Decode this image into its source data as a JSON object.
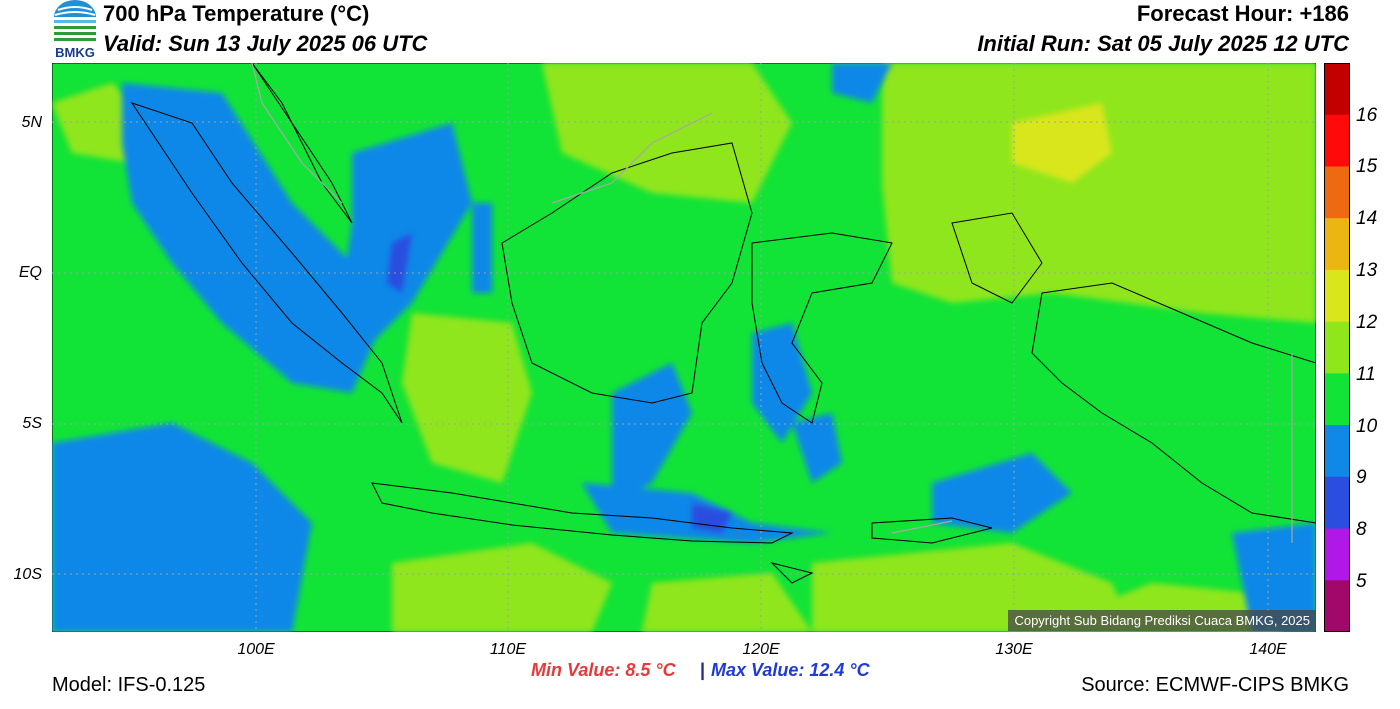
{
  "header": {
    "title": "700 hPa Temperature (°C)",
    "valid": "Valid: Sun 13 July 2025 06 UTC",
    "forecast_hour": "Forecast Hour: +186",
    "initial_run": "Initial Run: Sat 05 July 2025 12 UTC",
    "logo_text": "BMKG"
  },
  "map": {
    "lat_labels": [
      "5N",
      "EQ",
      "5S",
      "10S"
    ],
    "lon_labels": [
      "100E",
      "110E",
      "120E",
      "130E",
      "140E"
    ],
    "extent": {
      "lon_min": 92,
      "lon_max": 142,
      "lat_min": -12,
      "lat_max": 7
    },
    "background_color": "#12e337",
    "copyright": "Copyright Sub Bidang Prediksi Cuaca BMKG, 2025"
  },
  "colorbar": {
    "labels": [
      "16",
      "15",
      "14",
      "13",
      "12",
      "11",
      "10",
      "9",
      "8",
      "5"
    ],
    "colors": [
      "#c20000",
      "#ff0a0a",
      "#ee6a12",
      "#ebb512",
      "#d9e61b",
      "#8fe61b",
      "#12e337",
      "#1088e8",
      "#2b4ee0",
      "#b018e8",
      "#a2086a"
    ]
  },
  "footer": {
    "min_value": "Min Value: 8.5 °C",
    "separator": "|",
    "max_value": "Max Value: 12.4 °C",
    "model": "Model: IFS-0.125",
    "source": "Source: ECMWF-CIPS BMKG"
  }
}
